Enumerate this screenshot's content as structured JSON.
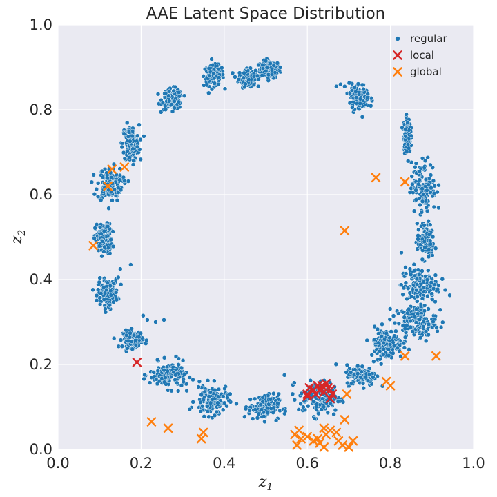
{
  "chart_data": {
    "type": "scatter",
    "title": "AAE Latent Space Distribution",
    "xlabel": "z",
    "xlabel_sub": "1",
    "ylabel": "z",
    "ylabel_sub": "2",
    "xlim": [
      0.0,
      1.0
    ],
    "ylim": [
      0.0,
      1.0
    ],
    "xticks": [
      "0.0",
      "0.2",
      "0.4",
      "0.6",
      "0.8",
      "1.0"
    ],
    "yticks": [
      "0.0",
      "0.2",
      "0.4",
      "0.6",
      "0.8",
      "1.0"
    ],
    "grid": true,
    "legend_position": "top-right",
    "colors": {
      "regular": "#1f77b4",
      "local": "#d62728",
      "global": "#ff7f0e",
      "background": "#eaeaf2",
      "grid": "#ffffff"
    },
    "series": [
      {
        "name": "regular",
        "marker": "circle",
        "clusters": [
          {
            "x": 0.51,
            "y": 0.895,
            "sx": 0.012,
            "sy": 0.01
          },
          {
            "x": 0.455,
            "y": 0.875,
            "sx": 0.01,
            "sy": 0.01
          },
          {
            "x": 0.375,
            "y": 0.88,
            "sx": 0.012,
            "sy": 0.012
          },
          {
            "x": 0.275,
            "y": 0.825,
            "sx": 0.012,
            "sy": 0.012
          },
          {
            "x": 0.175,
            "y": 0.72,
            "sx": 0.01,
            "sy": 0.022
          },
          {
            "x": 0.125,
            "y": 0.625,
            "sx": 0.015,
            "sy": 0.02
          },
          {
            "x": 0.11,
            "y": 0.495,
            "sx": 0.01,
            "sy": 0.018
          },
          {
            "x": 0.12,
            "y": 0.37,
            "sx": 0.012,
            "sy": 0.015
          },
          {
            "x": 0.18,
            "y": 0.26,
            "sx": 0.012,
            "sy": 0.01
          },
          {
            "x": 0.265,
            "y": 0.175,
            "sx": 0.022,
            "sy": 0.015
          },
          {
            "x": 0.37,
            "y": 0.115,
            "sx": 0.02,
            "sy": 0.018
          },
          {
            "x": 0.495,
            "y": 0.1,
            "sx": 0.018,
            "sy": 0.015
          },
          {
            "x": 0.63,
            "y": 0.12,
            "sx": 0.025,
            "sy": 0.02
          },
          {
            "x": 0.73,
            "y": 0.175,
            "sx": 0.018,
            "sy": 0.012
          },
          {
            "x": 0.79,
            "y": 0.25,
            "sx": 0.02,
            "sy": 0.018
          },
          {
            "x": 0.86,
            "y": 0.3,
            "sx": 0.025,
            "sy": 0.02
          },
          {
            "x": 0.87,
            "y": 0.385,
            "sx": 0.022,
            "sy": 0.022
          },
          {
            "x": 0.885,
            "y": 0.49,
            "sx": 0.01,
            "sy": 0.02
          },
          {
            "x": 0.88,
            "y": 0.62,
            "sx": 0.015,
            "sy": 0.03
          },
          {
            "x": 0.84,
            "y": 0.74,
            "sx": 0.004,
            "sy": 0.02
          },
          {
            "x": 0.725,
            "y": 0.83,
            "sx": 0.012,
            "sy": 0.015
          }
        ],
        "outliers": [
          [
            0.205,
            0.315
          ],
          [
            0.215,
            0.305
          ],
          [
            0.235,
            0.3
          ],
          [
            0.255,
            0.305
          ],
          [
            0.175,
            0.435
          ],
          [
            0.15,
            0.425
          ],
          [
            0.145,
            0.405
          ],
          [
            0.545,
            0.175
          ],
          [
            0.605,
            0.145
          ],
          [
            0.68,
            0.86
          ],
          [
            0.67,
            0.855
          ],
          [
            0.69,
            0.855
          ],
          [
            0.48,
            0.88
          ],
          [
            0.5,
            0.915
          ],
          [
            0.535,
            0.9
          ]
        ]
      },
      {
        "name": "local",
        "marker": "x",
        "points": [
          [
            0.19,
            0.205
          ],
          [
            0.6,
            0.13
          ],
          [
            0.6,
            0.125
          ],
          [
            0.605,
            0.145
          ],
          [
            0.615,
            0.14
          ],
          [
            0.62,
            0.13
          ],
          [
            0.625,
            0.15
          ],
          [
            0.63,
            0.14
          ],
          [
            0.635,
            0.15
          ],
          [
            0.64,
            0.145
          ],
          [
            0.64,
            0.135
          ],
          [
            0.645,
            0.155
          ],
          [
            0.65,
            0.145
          ],
          [
            0.655,
            0.14
          ],
          [
            0.655,
            0.12
          ],
          [
            0.66,
            0.13
          ]
        ]
      },
      {
        "name": "global",
        "marker": "x",
        "points": [
          [
            0.13,
            0.66
          ],
          [
            0.16,
            0.665
          ],
          [
            0.12,
            0.62
          ],
          [
            0.085,
            0.48
          ],
          [
            0.225,
            0.065
          ],
          [
            0.265,
            0.05
          ],
          [
            0.345,
            0.025
          ],
          [
            0.35,
            0.04
          ],
          [
            0.57,
            0.035
          ],
          [
            0.58,
            0.045
          ],
          [
            0.585,
            0.025
          ],
          [
            0.575,
            0.01
          ],
          [
            0.6,
            0.03
          ],
          [
            0.615,
            0.02
          ],
          [
            0.625,
            0.025
          ],
          [
            0.63,
            0.015
          ],
          [
            0.64,
            0.05
          ],
          [
            0.645,
            0.035
          ],
          [
            0.655,
            0.045
          ],
          [
            0.67,
            0.04
          ],
          [
            0.675,
            0.02
          ],
          [
            0.685,
            0.01
          ],
          [
            0.7,
            0.005
          ],
          [
            0.71,
            0.02
          ],
          [
            0.64,
            0.005
          ],
          [
            0.69,
            0.07
          ],
          [
            0.695,
            0.13
          ],
          [
            0.69,
            0.515
          ],
          [
            0.765,
            0.64
          ],
          [
            0.835,
            0.63
          ],
          [
            0.79,
            0.16
          ],
          [
            0.8,
            0.15
          ],
          [
            0.835,
            0.22
          ],
          [
            0.91,
            0.22
          ]
        ]
      }
    ]
  }
}
